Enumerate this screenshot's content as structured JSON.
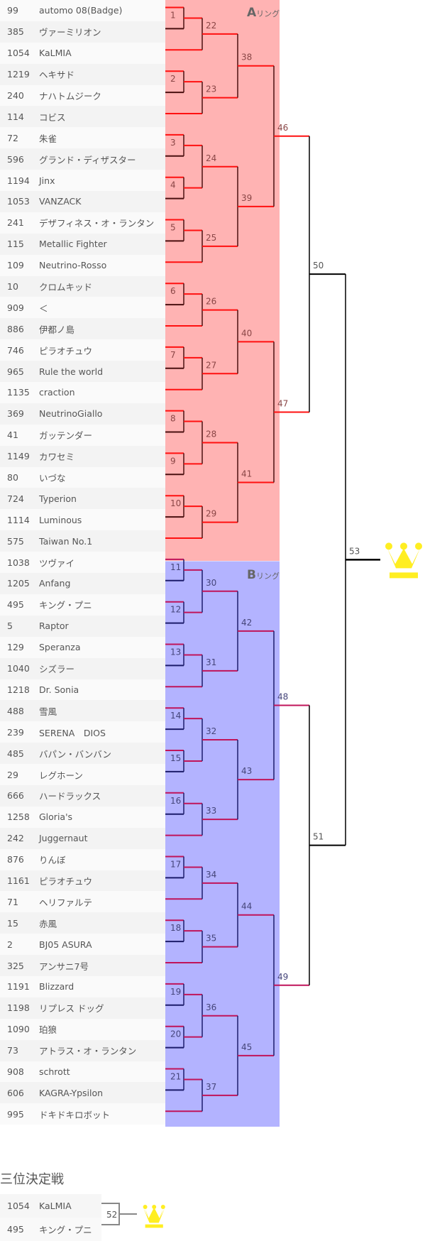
{
  "ring_a": {
    "letter": "A",
    "suffix": "リング",
    "color": "#ffb3b3"
  },
  "ring_b": {
    "letter": "B",
    "suffix": "リング",
    "color": "#b3b3ff"
  },
  "players": [
    {
      "id": "99",
      "name": "automo 08(Badge)"
    },
    {
      "id": "385",
      "name": "ヴァーミリオン"
    },
    {
      "id": "1054",
      "name": "KaLMIA"
    },
    {
      "id": "1219",
      "name": "ヘキサド"
    },
    {
      "id": "240",
      "name": "ナハトムジーク"
    },
    {
      "id": "114",
      "name": "コビス"
    },
    {
      "id": "72",
      "name": "朱雀"
    },
    {
      "id": "596",
      "name": "グランド・ディザスター"
    },
    {
      "id": "1194",
      "name": "Jinx"
    },
    {
      "id": "1053",
      "name": "VANZACK"
    },
    {
      "id": "241",
      "name": "デザフィネス・オ・ランタン"
    },
    {
      "id": "115",
      "name": "Metallic Fighter"
    },
    {
      "id": "109",
      "name": "Neutrino-Rosso"
    },
    {
      "id": "10",
      "name": "クロムキッド"
    },
    {
      "id": "909",
      "name": "＜"
    },
    {
      "id": "886",
      "name": "伊都ノ島"
    },
    {
      "id": "746",
      "name": "ピラオチュウ"
    },
    {
      "id": "965",
      "name": "Rule the world"
    },
    {
      "id": "1135",
      "name": "craction"
    },
    {
      "id": "369",
      "name": "NeutrinoGiallo"
    },
    {
      "id": "41",
      "name": "ガッテンダー"
    },
    {
      "id": "1149",
      "name": "カワセミ"
    },
    {
      "id": "80",
      "name": "いづな"
    },
    {
      "id": "724",
      "name": "Typerion"
    },
    {
      "id": "1114",
      "name": "Luminous"
    },
    {
      "id": "575",
      "name": "Taiwan No.1"
    },
    {
      "id": "1038",
      "name": "ツヴァイ"
    },
    {
      "id": "1205",
      "name": "Anfang"
    },
    {
      "id": "495",
      "name": "キング・プニ"
    },
    {
      "id": "5",
      "name": "Raptor"
    },
    {
      "id": "129",
      "name": "Speranza"
    },
    {
      "id": "1040",
      "name": "シズラー"
    },
    {
      "id": "1218",
      "name": "Dr. Sonia"
    },
    {
      "id": "488",
      "name": "雪風"
    },
    {
      "id": "239",
      "name": "SERENA　DIOS"
    },
    {
      "id": "485",
      "name": "バパン・バンバン"
    },
    {
      "id": "29",
      "name": "レグホーン"
    },
    {
      "id": "666",
      "name": "ハードラックス"
    },
    {
      "id": "1258",
      "name": "Gloria's"
    },
    {
      "id": "242",
      "name": "Juggernaut"
    },
    {
      "id": "876",
      "name": "りんぼ"
    },
    {
      "id": "1161",
      "name": "ピラオチュウ"
    },
    {
      "id": "71",
      "name": "ヘリファルテ"
    },
    {
      "id": "15",
      "name": "赤風"
    },
    {
      "id": "2",
      "name": "BJ05 ASURA"
    },
    {
      "id": "325",
      "name": "アンサニ7号"
    },
    {
      "id": "1191",
      "name": "Blizzard"
    },
    {
      "id": "1198",
      "name": "リプレス ドッグ"
    },
    {
      "id": "1090",
      "name": "珀狼"
    },
    {
      "id": "73",
      "name": "アトラス・オ・ランタン"
    },
    {
      "id": "908",
      "name": "schrott"
    },
    {
      "id": "606",
      "name": "KAGRA-Ypsilon"
    },
    {
      "id": "995",
      "name": "ドキドキロボット"
    }
  ],
  "matches": [
    {
      "no": "1",
      "ring": "A",
      "inputs": [
        "p0",
        "p1"
      ]
    },
    {
      "no": "2",
      "ring": "A",
      "inputs": [
        "p3",
        "p4"
      ]
    },
    {
      "no": "3",
      "ring": "A",
      "inputs": [
        "p6",
        "p7"
      ]
    },
    {
      "no": "4",
      "ring": "A",
      "inputs": [
        "p8",
        "p9"
      ]
    },
    {
      "no": "5",
      "ring": "A",
      "inputs": [
        "p10",
        "p11"
      ]
    },
    {
      "no": "6",
      "ring": "A",
      "inputs": [
        "p13",
        "p14"
      ]
    },
    {
      "no": "7",
      "ring": "A",
      "inputs": [
        "p16",
        "p17"
      ]
    },
    {
      "no": "8",
      "ring": "A",
      "inputs": [
        "p19",
        "p20"
      ]
    },
    {
      "no": "9",
      "ring": "A",
      "inputs": [
        "p21",
        "p22"
      ]
    },
    {
      "no": "10",
      "ring": "A",
      "inputs": [
        "p23",
        "p24"
      ]
    },
    {
      "no": "11",
      "ring": "B",
      "inputs": [
        "p26",
        "p27"
      ]
    },
    {
      "no": "12",
      "ring": "B",
      "inputs": [
        "p28",
        "p29"
      ]
    },
    {
      "no": "13",
      "ring": "B",
      "inputs": [
        "p30",
        "p31"
      ]
    },
    {
      "no": "14",
      "ring": "B",
      "inputs": [
        "p33",
        "p34"
      ]
    },
    {
      "no": "15",
      "ring": "B",
      "inputs": [
        "p35",
        "p36"
      ]
    },
    {
      "no": "16",
      "ring": "B",
      "inputs": [
        "p37",
        "p38"
      ]
    },
    {
      "no": "17",
      "ring": "B",
      "inputs": [
        "p40",
        "p41"
      ]
    },
    {
      "no": "18",
      "ring": "B",
      "inputs": [
        "p43",
        "p44"
      ]
    },
    {
      "no": "19",
      "ring": "B",
      "inputs": [
        "p46",
        "p47"
      ]
    },
    {
      "no": "20",
      "ring": "B",
      "inputs": [
        "p48",
        "p49"
      ]
    },
    {
      "no": "21",
      "ring": "B",
      "inputs": [
        "p50",
        "p51"
      ]
    },
    {
      "no": "22",
      "ring": "A",
      "inputs": [
        "m1",
        "p2"
      ]
    },
    {
      "no": "23",
      "ring": "A",
      "inputs": [
        "m2",
        "p5"
      ]
    },
    {
      "no": "24",
      "ring": "A",
      "inputs": [
        "m3",
        "m4"
      ]
    },
    {
      "no": "25",
      "ring": "A",
      "inputs": [
        "m5",
        "p12"
      ]
    },
    {
      "no": "26",
      "ring": "A",
      "inputs": [
        "m6",
        "p15"
      ]
    },
    {
      "no": "27",
      "ring": "A",
      "inputs": [
        "m7",
        "p18"
      ]
    },
    {
      "no": "28",
      "ring": "A",
      "inputs": [
        "m8",
        "m9"
      ]
    },
    {
      "no": "29",
      "ring": "A",
      "inputs": [
        "m10",
        "p25"
      ]
    },
    {
      "no": "30",
      "ring": "B",
      "inputs": [
        "m11",
        "m12"
      ]
    },
    {
      "no": "31",
      "ring": "B",
      "inputs": [
        "m13",
        "p32"
      ]
    },
    {
      "no": "32",
      "ring": "B",
      "inputs": [
        "m14",
        "m15"
      ]
    },
    {
      "no": "33",
      "ring": "B",
      "inputs": [
        "m16",
        "p39"
      ]
    },
    {
      "no": "34",
      "ring": "B",
      "inputs": [
        "m17",
        "p42"
      ]
    },
    {
      "no": "35",
      "ring": "B",
      "inputs": [
        "m18",
        "p45"
      ]
    },
    {
      "no": "36",
      "ring": "B",
      "inputs": [
        "m19",
        "m20"
      ]
    },
    {
      "no": "37",
      "ring": "B",
      "inputs": [
        "m21",
        "p52"
      ]
    },
    {
      "no": "38",
      "ring": "A",
      "inputs": [
        "m22",
        "m23"
      ]
    },
    {
      "no": "39",
      "ring": "A",
      "inputs": [
        "m24",
        "m25"
      ]
    },
    {
      "no": "40",
      "ring": "A",
      "inputs": [
        "m26",
        "m27"
      ]
    },
    {
      "no": "41",
      "ring": "A",
      "inputs": [
        "m28",
        "m29"
      ]
    },
    {
      "no": "42",
      "ring": "B",
      "inputs": [
        "m30",
        "m31"
      ]
    },
    {
      "no": "43",
      "ring": "B",
      "inputs": [
        "m32",
        "m33"
      ]
    },
    {
      "no": "44",
      "ring": "B",
      "inputs": [
        "m34",
        "m35"
      ]
    },
    {
      "no": "45",
      "ring": "B",
      "inputs": [
        "m36",
        "m37"
      ]
    },
    {
      "no": "46",
      "ring": "A",
      "inputs": [
        "m38",
        "m39"
      ]
    },
    {
      "no": "47",
      "ring": "A",
      "inputs": [
        "m40",
        "m41"
      ]
    },
    {
      "no": "48",
      "ring": "B",
      "inputs": [
        "m42",
        "m43"
      ]
    },
    {
      "no": "49",
      "ring": "B",
      "inputs": [
        "m44",
        "m45"
      ]
    },
    {
      "no": "50",
      "ring": "F",
      "inputs": [
        "m46",
        "m47"
      ]
    },
    {
      "no": "51",
      "ring": "F",
      "inputs": [
        "m48",
        "m49"
      ]
    },
    {
      "no": "53",
      "ring": "F",
      "inputs": [
        "m50",
        "m51"
      ]
    }
  ],
  "colors": {
    "line_a": "#ff1010",
    "line_b": "#c0145a",
    "vert_a": "#4a1010",
    "vert_b": "#1c1c6a",
    "final": "#000000",
    "crown": "#ffee22"
  },
  "champion_icon": "crown-icon",
  "third_place": {
    "title": "三位決定戦",
    "match_no": "52",
    "players": [
      {
        "id": "1054",
        "name": "KaLMIA"
      },
      {
        "id": "495",
        "name": "キング・プニ"
      }
    ]
  }
}
